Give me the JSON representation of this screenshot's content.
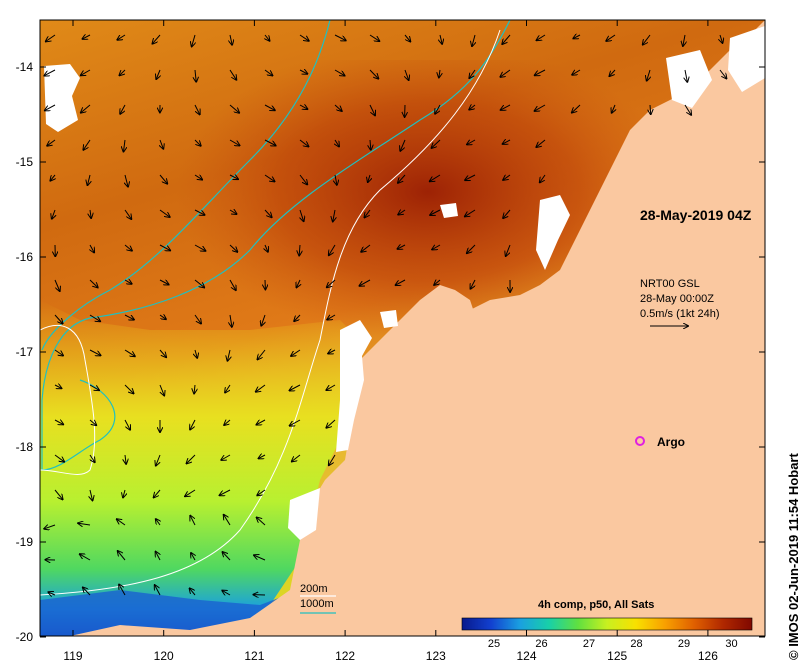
{
  "map": {
    "timestamp_label": "28-May-2019 04Z",
    "current": {
      "source": "NRT00 GSL",
      "time": "28-May 00:00Z",
      "scale": "0.5m/s (1kt 24h)"
    },
    "argo_label": "Argo",
    "isobaths": [
      {
        "label": "200m",
        "color": "#ffffff"
      },
      {
        "label": "1000m",
        "color": "#20c0c0"
      }
    ],
    "colorbar": {
      "title": "4h comp, p50, All Sats",
      "ticks": [
        "25",
        "26",
        "27",
        "28",
        "29",
        "30"
      ],
      "colors": [
        "#081a8c",
        "#1240d0",
        "#1aa0e0",
        "#18d0a8",
        "#60e040",
        "#c8f020",
        "#f8e000",
        "#f8a000",
        "#e06000",
        "#b02800",
        "#800800"
      ]
    },
    "lon_ticks": [
      "119",
      "120",
      "121",
      "122",
      "123",
      "124",
      "125",
      "126"
    ],
    "lat_ticks": [
      "-14",
      "-15",
      "-16",
      "-17",
      "-18",
      "-19",
      "-20"
    ],
    "credit": "© IMOS 02-Jun-2019 11:54 Hobart",
    "colors": {
      "land": "#fac8a0",
      "cloud": "#ffffff",
      "argo": "#e020e0"
    }
  }
}
